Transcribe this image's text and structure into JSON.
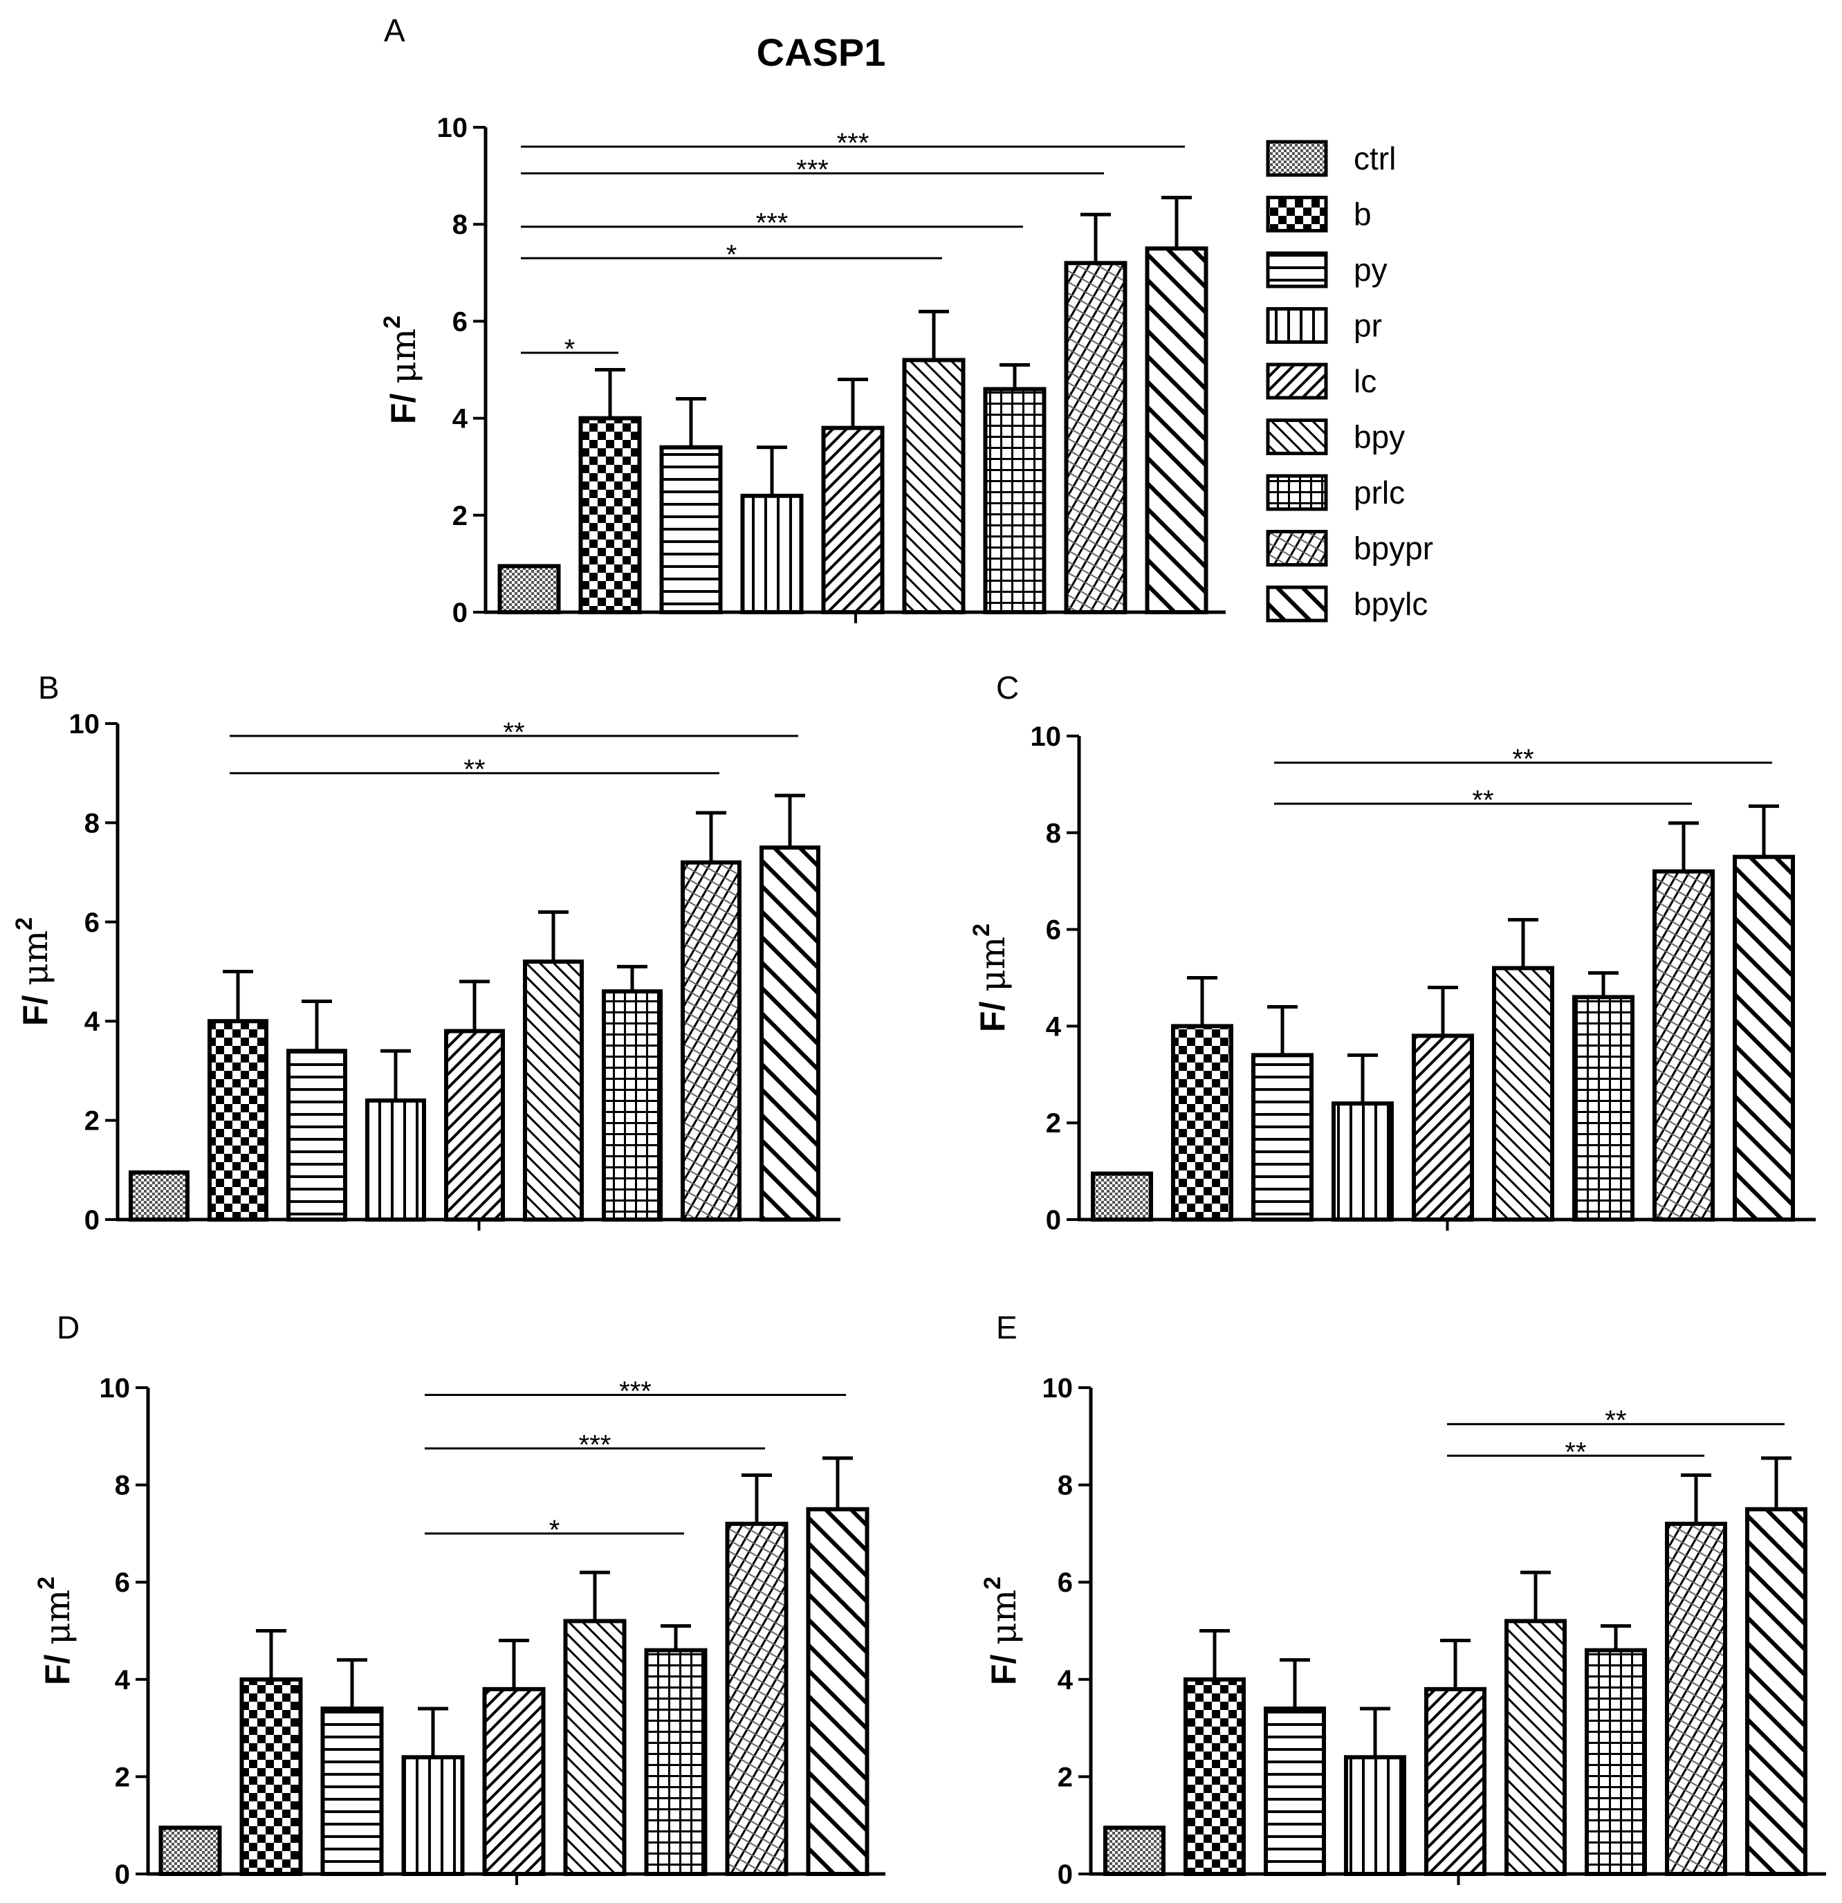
{
  "figure": {
    "title": "CASP1"
  },
  "legend": {
    "entries": [
      {
        "label": "ctrl",
        "pattern": "dots"
      },
      {
        "label": "b",
        "pattern": "checker"
      },
      {
        "label": "py",
        "pattern": "hlines"
      },
      {
        "label": "pr",
        "pattern": "vlines"
      },
      {
        "label": "lc",
        "pattern": "diag-up"
      },
      {
        "label": "bpy",
        "pattern": "diag-down"
      },
      {
        "label": "prlc",
        "pattern": "grid"
      },
      {
        "label": "bpypr",
        "pattern": "crosshatch"
      },
      {
        "label": "bpylc",
        "pattern": "diag-down-wide"
      }
    ]
  },
  "chart_data": [
    {
      "panel": "A",
      "type": "bar",
      "categories": [
        "ctrl",
        "b",
        "py",
        "pr",
        "lc",
        "bpy",
        "prlc",
        "bpypr",
        "bpylc"
      ],
      "values": [
        0.95,
        4.0,
        3.4,
        2.4,
        3.8,
        5.2,
        4.6,
        7.2,
        7.5
      ],
      "errors": [
        0.0,
        1.0,
        1.0,
        1.0,
        1.0,
        1.0,
        0.5,
        1.0,
        1.05
      ],
      "ylabel": "F/ μm",
      "ylabel_sup": "2",
      "ylim": [
        0,
        10
      ],
      "yticks": [
        "0",
        "2",
        "4",
        "6",
        "8",
        "10"
      ],
      "significance": [
        {
          "from": 0,
          "to": 1,
          "level": 5.35,
          "label": "*"
        },
        {
          "from": 0,
          "to": 5,
          "level": 7.3,
          "label": "*"
        },
        {
          "from": 0,
          "to": 6,
          "level": 7.95,
          "label": "***"
        },
        {
          "from": 0,
          "to": 7,
          "level": 9.05,
          "label": "***"
        },
        {
          "from": 0,
          "to": 8,
          "level": 9.6,
          "label": "***"
        }
      ]
    },
    {
      "panel": "B",
      "type": "bar",
      "categories": [
        "ctrl",
        "b",
        "py",
        "pr",
        "lc",
        "bpy",
        "prlc",
        "bpypr",
        "bpylc"
      ],
      "values": [
        0.95,
        4.0,
        3.4,
        2.4,
        3.8,
        5.2,
        4.6,
        7.2,
        7.5
      ],
      "errors": [
        0.0,
        1.0,
        1.0,
        1.0,
        1.0,
        1.0,
        0.5,
        1.0,
        1.05
      ],
      "ylabel": "F/ μm",
      "ylabel_sup": "2",
      "ylim": [
        0,
        10
      ],
      "yticks": [
        "0",
        "2",
        "4",
        "6",
        "8",
        "10"
      ],
      "significance": [
        {
          "from": 1,
          "to": 7,
          "level": 9.0,
          "label": "**"
        },
        {
          "from": 1,
          "to": 8,
          "level": 9.75,
          "label": "**"
        }
      ]
    },
    {
      "panel": "C",
      "type": "bar",
      "categories": [
        "ctrl",
        "b",
        "py",
        "pr",
        "lc",
        "bpy",
        "prlc",
        "bpypr",
        "bpylc"
      ],
      "values": [
        0.95,
        4.0,
        3.4,
        2.4,
        3.8,
        5.2,
        4.6,
        7.2,
        7.5
      ],
      "errors": [
        0.0,
        1.0,
        1.0,
        1.0,
        1.0,
        1.0,
        0.5,
        1.0,
        1.05
      ],
      "ylabel": "F/ μm",
      "ylabel_sup": "2",
      "ylim": [
        0,
        10
      ],
      "yticks": [
        "0",
        "2",
        "4",
        "6",
        "8",
        "10"
      ],
      "significance": [
        {
          "from": 2,
          "to": 7,
          "level": 8.6,
          "label": "**"
        },
        {
          "from": 2,
          "to": 8,
          "level": 9.45,
          "label": "**"
        }
      ]
    },
    {
      "panel": "D",
      "type": "bar",
      "categories": [
        "ctrl",
        "b",
        "py",
        "pr",
        "lc",
        "bpy",
        "prlc",
        "bpypr",
        "bpylc"
      ],
      "values": [
        0.95,
        4.0,
        3.4,
        2.4,
        3.8,
        5.2,
        4.6,
        7.2,
        7.5
      ],
      "errors": [
        0.0,
        1.0,
        1.0,
        1.0,
        1.0,
        1.0,
        0.5,
        1.0,
        1.05
      ],
      "ylabel": "F/ μm",
      "ylabel_sup": "2",
      "ylim": [
        0,
        10
      ],
      "yticks": [
        "0",
        "2",
        "4",
        "6",
        "8",
        "10"
      ],
      "significance": [
        {
          "from": 3,
          "to": 6,
          "level": 7.0,
          "label": "*"
        },
        {
          "from": 3,
          "to": 7,
          "level": 8.75,
          "label": "***"
        },
        {
          "from": 3,
          "to": 8,
          "level": 9.85,
          "label": "***"
        }
      ]
    },
    {
      "panel": "E",
      "type": "bar",
      "categories": [
        "ctrl",
        "b",
        "py",
        "pr",
        "lc",
        "bpy",
        "prlc",
        "bpypr",
        "bpylc"
      ],
      "values": [
        0.95,
        4.0,
        3.4,
        2.4,
        3.8,
        5.2,
        4.6,
        7.2,
        7.5
      ],
      "errors": [
        0.0,
        1.0,
        1.0,
        1.0,
        1.0,
        1.0,
        0.5,
        1.0,
        1.05
      ],
      "ylabel": "F/ μm",
      "ylabel_sup": "2",
      "ylim": [
        0,
        10
      ],
      "yticks": [
        "0",
        "2",
        "4",
        "6",
        "8",
        "10"
      ],
      "significance": [
        {
          "from": 4,
          "to": 7,
          "level": 8.6,
          "label": "**"
        },
        {
          "from": 4,
          "to": 8,
          "level": 9.25,
          "label": "**"
        }
      ]
    }
  ]
}
